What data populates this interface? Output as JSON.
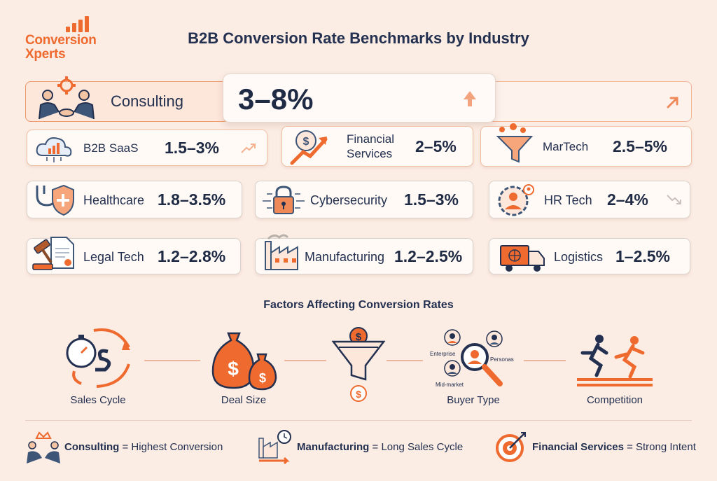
{
  "logo": {
    "line1": "Conversion",
    "line2": "Xperts"
  },
  "title": "B2B Conversion Rate Benchmarks by Industry",
  "hero": {
    "name": "Consulting",
    "value": "3–8%",
    "icon": "handshake-gear-icon",
    "trend": "up"
  },
  "industries": [
    {
      "name": "B2B SaaS",
      "value": "1.5–3%",
      "icon": "cloud-chart-icon",
      "trend": "up"
    },
    {
      "name_line1": "Financial",
      "name_line2": "Services",
      "value": "2–5%",
      "icon": "dollar-growth-icon"
    },
    {
      "name": "MarTech",
      "value": "2.5–5%",
      "icon": "funnel-icon"
    },
    {
      "name": "Healthcare",
      "value": "1.8–3.5%",
      "icon": "stethoscope-shield-icon"
    },
    {
      "name": "Cybersecurity",
      "value": "1.5–3%",
      "icon": "padlock-circuit-icon"
    },
    {
      "name": "HR Tech",
      "value": "2–4%",
      "icon": "person-gear-icon",
      "trend": "down"
    },
    {
      "name": "Legal Tech",
      "value": "1.2–2.8%",
      "icon": "gavel-document-icon"
    },
    {
      "name": "Manufacturing",
      "value": "1.2–2.5%",
      "icon": "factory-icon"
    },
    {
      "name": "Logistics",
      "value": "1–2.5%",
      "icon": "delivery-truck-icon"
    }
  ],
  "factors": {
    "title": "Factors Affecting Conversion Rates",
    "items": [
      {
        "label": "Sales Cycle",
        "icon": "stopwatch-cycle-icon"
      },
      {
        "label": "Deal Size",
        "icon": "money-bags-icon"
      },
      {
        "label": "",
        "icon": "funnel-coin-icon"
      },
      {
        "label": "Buyer Type",
        "icon": "magnifier-personas-icon",
        "sub": [
          "Enterprise",
          "Personas",
          "Mid-market"
        ]
      },
      {
        "label": "Competition",
        "icon": "runners-track-icon"
      }
    ]
  },
  "legend": [
    {
      "strong": "Consulting",
      "rest": " = Highest Conversion",
      "icon": "crown-handshake-icon"
    },
    {
      "strong": "Manufacturing",
      "rest": " = Long Sales Cycle",
      "icon": "factory-clock-icon"
    },
    {
      "strong": "Financial Services",
      "rest": " = Strong Intent",
      "icon": "target-icon"
    }
  ],
  "colors": {
    "accent": "#ef6a2e",
    "navy": "#23304f",
    "background": "#fbece4"
  }
}
